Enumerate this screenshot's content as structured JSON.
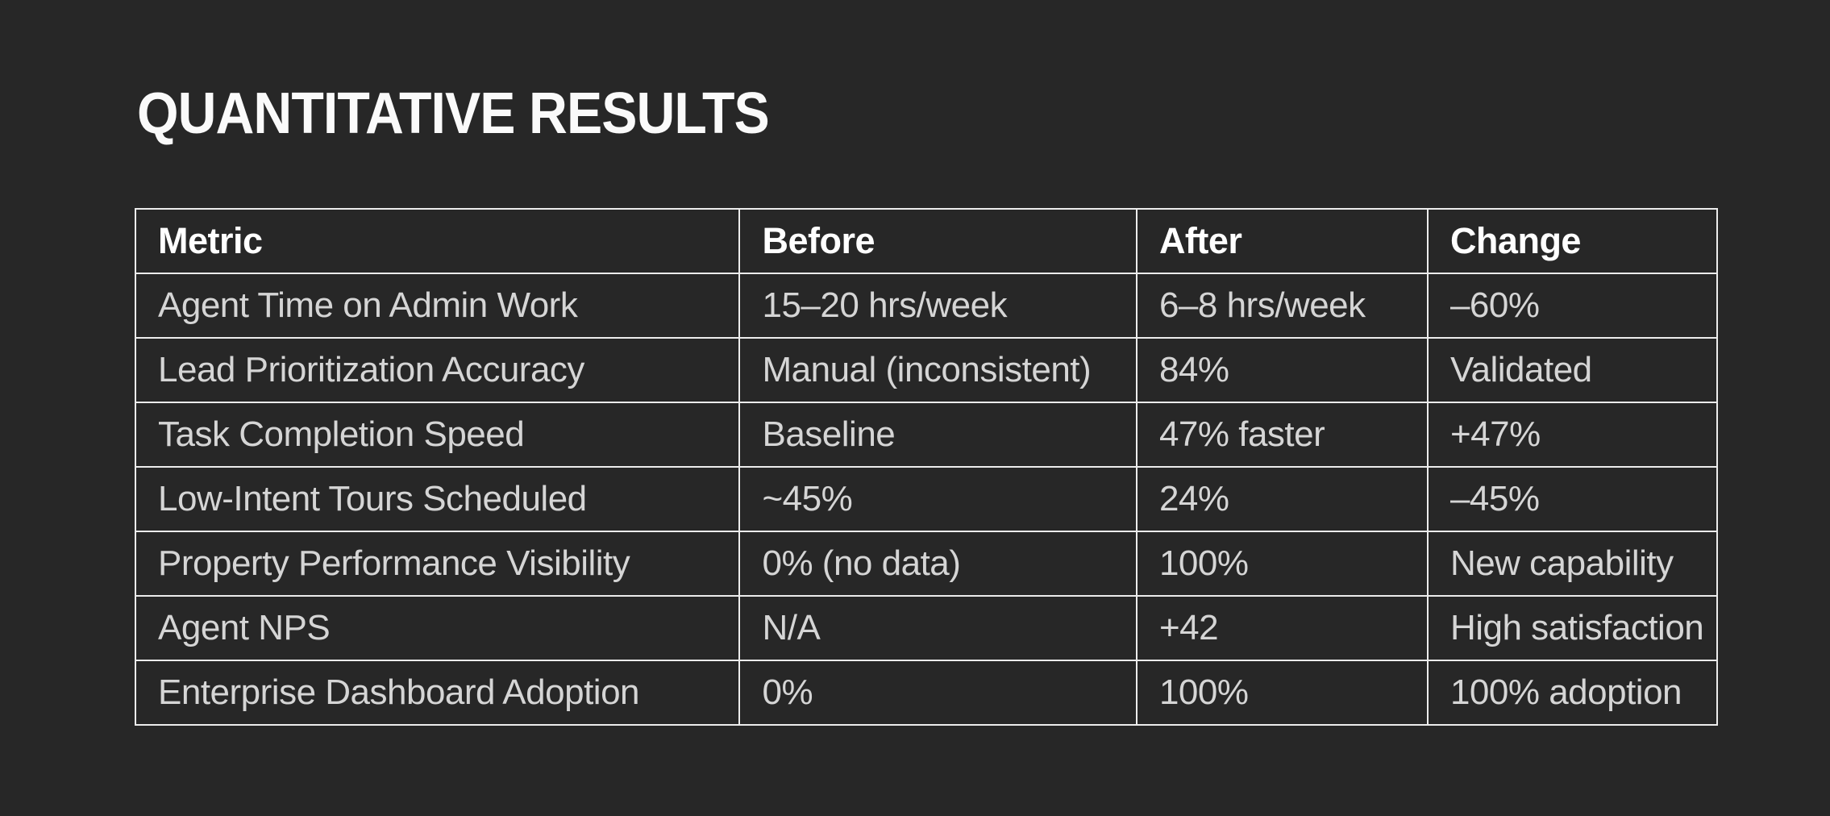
{
  "page": {
    "title": "QUANTITATIVE RESULTS"
  },
  "colors": {
    "background": "#272727",
    "title_text": "#fafafa",
    "header_text": "#ffffff",
    "body_text": "#d5d5d5",
    "table_border": "#ececec"
  },
  "table": {
    "columns": [
      "Metric",
      "Before",
      "After",
      "Change"
    ],
    "rows": [
      [
        "Agent Time on Admin Work",
        "15–20 hrs/week",
        "6–8 hrs/week",
        "–60%"
      ],
      [
        "Lead Prioritization Accuracy",
        "Manual (inconsistent)",
        "84%",
        "Validated"
      ],
      [
        "Task Completion Speed",
        "Baseline",
        "47% faster",
        "+47%"
      ],
      [
        "Low-Intent Tours Scheduled",
        "~45%",
        "24%",
        "–45%"
      ],
      [
        "Property Performance Visibility",
        "0% (no data)",
        "100%",
        "New capability"
      ],
      [
        "Agent NPS",
        "N/A",
        "+42",
        "High satisfaction"
      ],
      [
        "Enterprise Dashboard Adoption",
        "0%",
        "100%",
        "100% adoption"
      ]
    ]
  }
}
